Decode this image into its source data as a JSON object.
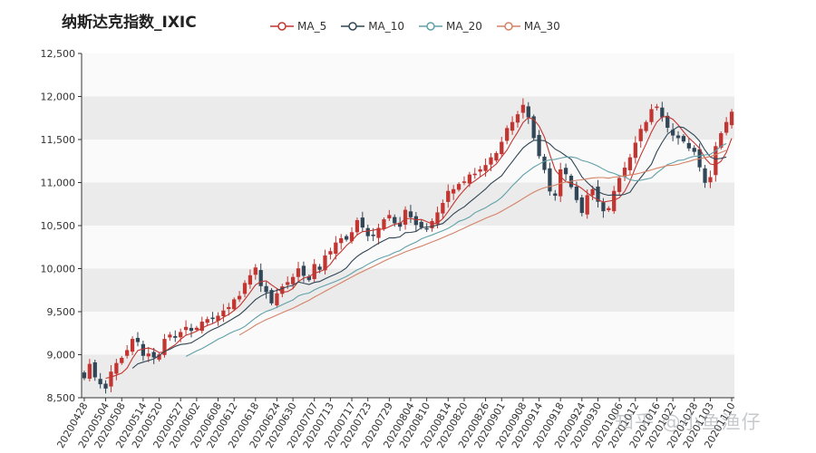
{
  "chart_data": {
    "type": "candlestick",
    "title": "纳斯达克指数_IXIC",
    "legend": [
      {
        "name": "MA_5",
        "color": "#c23531"
      },
      {
        "name": "MA_10",
        "color": "#2f4554"
      },
      {
        "name": "MA_20",
        "color": "#61a0a8"
      },
      {
        "name": "MA_30",
        "color": "#d48265"
      }
    ],
    "legend_position": "top-center",
    "up_color": "#c23531",
    "down_color": "#314656",
    "ylim": [
      8500,
      12500
    ],
    "y_ticks": [
      "8,500",
      "9,000",
      "9,500",
      "10,000",
      "10,500",
      "11,000",
      "11,500",
      "12,000",
      "12,500"
    ],
    "y_tick_values": [
      8500,
      9000,
      9500,
      10000,
      10500,
      11000,
      11500,
      12000,
      12500
    ],
    "x_tick_labels": [
      "20200428",
      "20200504",
      "20200508",
      "20200514",
      "20200520",
      "20200527",
      "20200602",
      "20200608",
      "20200612",
      "20200618",
      "20200624",
      "20200630",
      "20200707",
      "20200713",
      "20200717",
      "20200723",
      "20200729",
      "20200804",
      "20200810",
      "20200814",
      "20200820",
      "20200826",
      "20200901",
      "20200908",
      "20200914",
      "20200918",
      "20200924",
      "20200930",
      "20201006",
      "20201012",
      "20201016",
      "20201022",
      "20201028",
      "20201103",
      "20201110"
    ],
    "grid": "alternating horizontal bands",
    "watermark": "知乎 @小鱼渔仔",
    "closes": [
      8730,
      8890,
      8740,
      8660,
      8610,
      8800,
      8900,
      8960,
      9050,
      9180,
      9150,
      8990,
      9010,
      8970,
      9000,
      9180,
      9230,
      9200,
      9260,
      9320,
      9280,
      9310,
      9380,
      9410,
      9420,
      9450,
      9510,
      9550,
      9640,
      9680,
      9830,
      9920,
      10010,
      9800,
      9730,
      9600,
      9710,
      9790,
      9840,
      9900,
      10000,
      9920,
      9870,
      10050,
      9990,
      10150,
      10200,
      10300,
      10350,
      10340,
      10420,
      10560,
      10480,
      10380,
      10390,
      10470,
      10570,
      10620,
      10530,
      10490,
      10680,
      10600,
      10510,
      10480,
      10460,
      10550,
      10650,
      10760,
      10900,
      10920,
      10980,
      11010,
      11090,
      11100,
      11150,
      11200,
      11290,
      11340,
      11470,
      11630,
      11700,
      11790,
      11900,
      11760,
      11520,
      11310,
      11150,
      10900,
      10850,
      11150,
      11100,
      10950,
      10800,
      10650,
      10850,
      10920,
      10780,
      10670,
      10700,
      10900,
      11050,
      11170,
      11290,
      11460,
      11620,
      11700,
      11850,
      11880,
      11760,
      11640,
      11550,
      11520,
      11480,
      11400,
      11360,
      11180,
      11000,
      11060,
      11420,
      11570,
      11700,
      11820
    ],
    "series": [
      {
        "name": "MA_5",
        "values": [
          null,
          null,
          null,
          null,
          8726,
          8740,
          8762,
          8786,
          8844,
          8958,
          9048,
          9066,
          9078,
          9060,
          9024,
          9030,
          9078,
          9116,
          9178,
          9226,
          9246,
          9274,
          9310,
          9340,
          9362,
          9394,
          9434,
          9468,
          9514,
          9566,
          9642,
          9724,
          9812,
          9848,
          9858,
          9812,
          9770,
          9726,
          9734,
          9768,
          9848,
          9890,
          9906,
          9946,
          9966,
          9992,
          10052,
          10138,
          10198,
          10268,
          10322,
          10394,
          10430,
          10436,
          10446,
          10458,
          10458,
          10486,
          10516,
          10524,
          10578,
          10584,
          10566,
          10572,
          10546,
          10520,
          10530,
          10580,
          10664,
          10756,
          10842,
          10914,
          10980,
          11020,
          11066,
          11110,
          11166,
          11216,
          11298,
          11378,
          11488,
          11586,
          11698,
          11756,
          11734,
          11656,
          11528,
          11328,
          11146,
          11072,
          11010,
          10990,
          10970,
          10930,
          10880,
          10834,
          10800,
          10774,
          10784,
          10794,
          10824,
          10898,
          11018,
          11174,
          11318,
          11450,
          11586,
          11702,
          11762,
          11766,
          11736,
          11670,
          11590,
          11518,
          11462,
          11398,
          11284,
          11216,
          11204,
          11246,
          11350,
          11514
        ]
      },
      {
        "name": "MA_10",
        "values": [
          null,
          null,
          null,
          null,
          null,
          null,
          null,
          null,
          null,
          8842,
          8894,
          8914,
          8932,
          8952,
          8991,
          9039,
          9063,
          9097,
          9119,
          9125,
          9138,
          9176,
          9213,
          9259,
          9294,
          9320,
          9354,
          9389,
          9427,
          9464,
          9518,
          9579,
          9640,
          9681,
          9712,
          9727,
          9747,
          9769,
          9791,
          9805,
          9845,
          9830,
          9816,
          9840,
          9851,
          9882,
          9911,
          9937,
          9966,
          10010,
          10084,
          10141,
          10184,
          10217,
          10257,
          10295,
          10326,
          10358,
          10357,
          10370,
          10418,
          10421,
          10432,
          10476,
          10484,
          10489,
          10507,
          10524,
          10578,
          10637,
          10681,
          10718,
          10772,
          10822,
          10874,
          10925,
          10988,
          11034,
          11079,
          11165,
          11244,
          11325,
          11402,
          11452,
          11490,
          11492,
          11486,
          11450,
          11388,
          11355,
          11311,
          11270,
          11173,
          11066,
          11001,
          10944,
          10895,
          10867,
          10852,
          10857,
          10852,
          10863,
          10887,
          10979,
          11057,
          11137,
          11214,
          11358,
          11467,
          11562,
          11610,
          11650,
          11639,
          11596,
          11549,
          11482,
          11378,
          11297,
          11273,
          11281,
          11297
        ]
      },
      {
        "name": "MA_20",
        "values": [
          null,
          null,
          null,
          null,
          null,
          null,
          null,
          null,
          null,
          null,
          null,
          null,
          null,
          null,
          null,
          null,
          null,
          null,
          null,
          8980,
          9012,
          9044,
          9072,
          9106,
          9142,
          9180,
          9208,
          9243,
          9273,
          9295,
          9328,
          9378,
          9426,
          9470,
          9503,
          9524,
          9550,
          9580,
          9609,
          9636,
          9683,
          9704,
          9716,
          9753,
          9782,
          9805,
          9829,
          9853,
          9880,
          9910,
          9946,
          9985,
          10013,
          10051,
          10083,
          10113,
          10137,
          10157,
          10188,
          10209,
          10251,
          10281,
          10308,
          10346,
          10370,
          10392,
          10417,
          10441,
          10468,
          10504,
          10549,
          10569,
          10600,
          10649,
          10679,
          10707,
          10747,
          10780,
          10828,
          10893,
          10963,
          11023,
          11087,
          11134,
          11179,
          11214,
          11248,
          11263,
          11269,
          11284,
          11297,
          11298,
          11286,
          11257,
          11242,
          11218,
          11191,
          11156,
          11124,
          11106,
          11081,
          11066,
          11032,
          11022,
          11026,
          11040,
          11054,
          11113,
          11159,
          11209,
          11231,
          11257,
          11263,
          11288,
          11305,
          11308,
          11321,
          11328,
          11369,
          11421,
          11454
        ]
      },
      {
        "name": "MA_30",
        "values": [
          null,
          null,
          null,
          null,
          null,
          null,
          null,
          null,
          null,
          null,
          null,
          null,
          null,
          null,
          null,
          null,
          null,
          null,
          null,
          null,
          null,
          null,
          null,
          null,
          null,
          null,
          null,
          null,
          null,
          9228,
          9265,
          9302,
          9343,
          9376,
          9407,
          9433,
          9460,
          9488,
          9515,
          9540,
          9571,
          9602,
          9632,
          9670,
          9702,
          9737,
          9770,
          9803,
          9836,
          9869,
          9902,
          9936,
          9966,
          9996,
          10025,
          10055,
          10086,
          10116,
          10142,
          10167,
          10195,
          10217,
          10240,
          10261,
          10285,
          10310,
          10335,
          10360,
          10388,
          10414,
          10443,
          10471,
          10501,
          10530,
          10557,
          10585,
          10611,
          10635,
          10667,
          10703,
          10738,
          10775,
          10814,
          10853,
          10888,
          10917,
          10941,
          10955,
          10969,
          10992,
          11006,
          11016,
          11026,
          11032,
          11044,
          11054,
          11058,
          11058,
          11051,
          11063,
          11069,
          11078,
          11088,
          11098,
          11112,
          11129,
          11147,
          11166,
          11181,
          11198,
          11201,
          11212,
          11230,
          11245,
          11265,
          11277,
          11290,
          11302,
          11324,
          11349,
          11375
        ]
      }
    ]
  }
}
